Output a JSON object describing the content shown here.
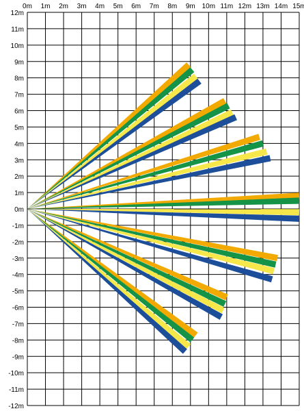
{
  "chart_data": {
    "type": "diagram",
    "x_labels": [
      "0m",
      "1m",
      "2m",
      "3m",
      "4m",
      "5m",
      "6m",
      "7m",
      "8m",
      "9m",
      "10m",
      "11m",
      "12m",
      "13m",
      "14m",
      "15m"
    ],
    "y_labels": [
      "12m",
      "11m",
      "10m",
      "9m",
      "8m",
      "7m",
      "6m",
      "5m",
      "4m",
      "3m",
      "2m",
      "1m",
      "0m",
      "-1m",
      "-2m",
      "-3m",
      "-4m",
      "-5m",
      "-6m",
      "-7m",
      "-8m",
      "-9m",
      "-10m",
      "-11m",
      "-12m"
    ],
    "xlim": [
      0,
      15
    ],
    "ylim": [
      -12,
      12
    ],
    "origin": [
      0,
      0
    ],
    "grid": true,
    "band_colors": [
      "#f2a900",
      "#159447",
      "#f6e84a",
      "#1c4e9a"
    ],
    "beams": [
      {
        "tips": [
          [
            8.9,
            8.8
          ],
          [
            9.1,
            8.5
          ],
          [
            9.3,
            8.1
          ],
          [
            9.5,
            7.8
          ]
        ]
      },
      {
        "tips": [
          [
            10.9,
            6.6
          ],
          [
            11.1,
            6.3
          ],
          [
            11.3,
            5.9
          ],
          [
            11.5,
            5.6
          ]
        ]
      },
      {
        "tips": [
          [
            12.8,
            4.4
          ],
          [
            13.0,
            4.0
          ],
          [
            13.2,
            3.5
          ],
          [
            13.4,
            3.1
          ]
        ]
      },
      {
        "tips": [
          [
            15.0,
            0.8
          ],
          [
            15.0,
            0.5
          ],
          [
            15.0,
            -0.2
          ],
          [
            15.0,
            -0.6
          ]
        ]
      },
      {
        "tips": [
          [
            13.8,
            -3.0
          ],
          [
            13.7,
            -3.4
          ],
          [
            13.6,
            -3.8
          ],
          [
            13.5,
            -4.3
          ]
        ]
      },
      {
        "tips": [
          [
            11.0,
            -5.4
          ],
          [
            10.9,
            -5.8
          ],
          [
            10.8,
            -6.2
          ],
          [
            10.7,
            -6.6
          ]
        ]
      },
      {
        "tips": [
          [
            9.3,
            -7.7
          ],
          [
            9.1,
            -8.0
          ],
          [
            8.9,
            -8.4
          ],
          [
            8.7,
            -8.7
          ]
        ]
      }
    ]
  }
}
